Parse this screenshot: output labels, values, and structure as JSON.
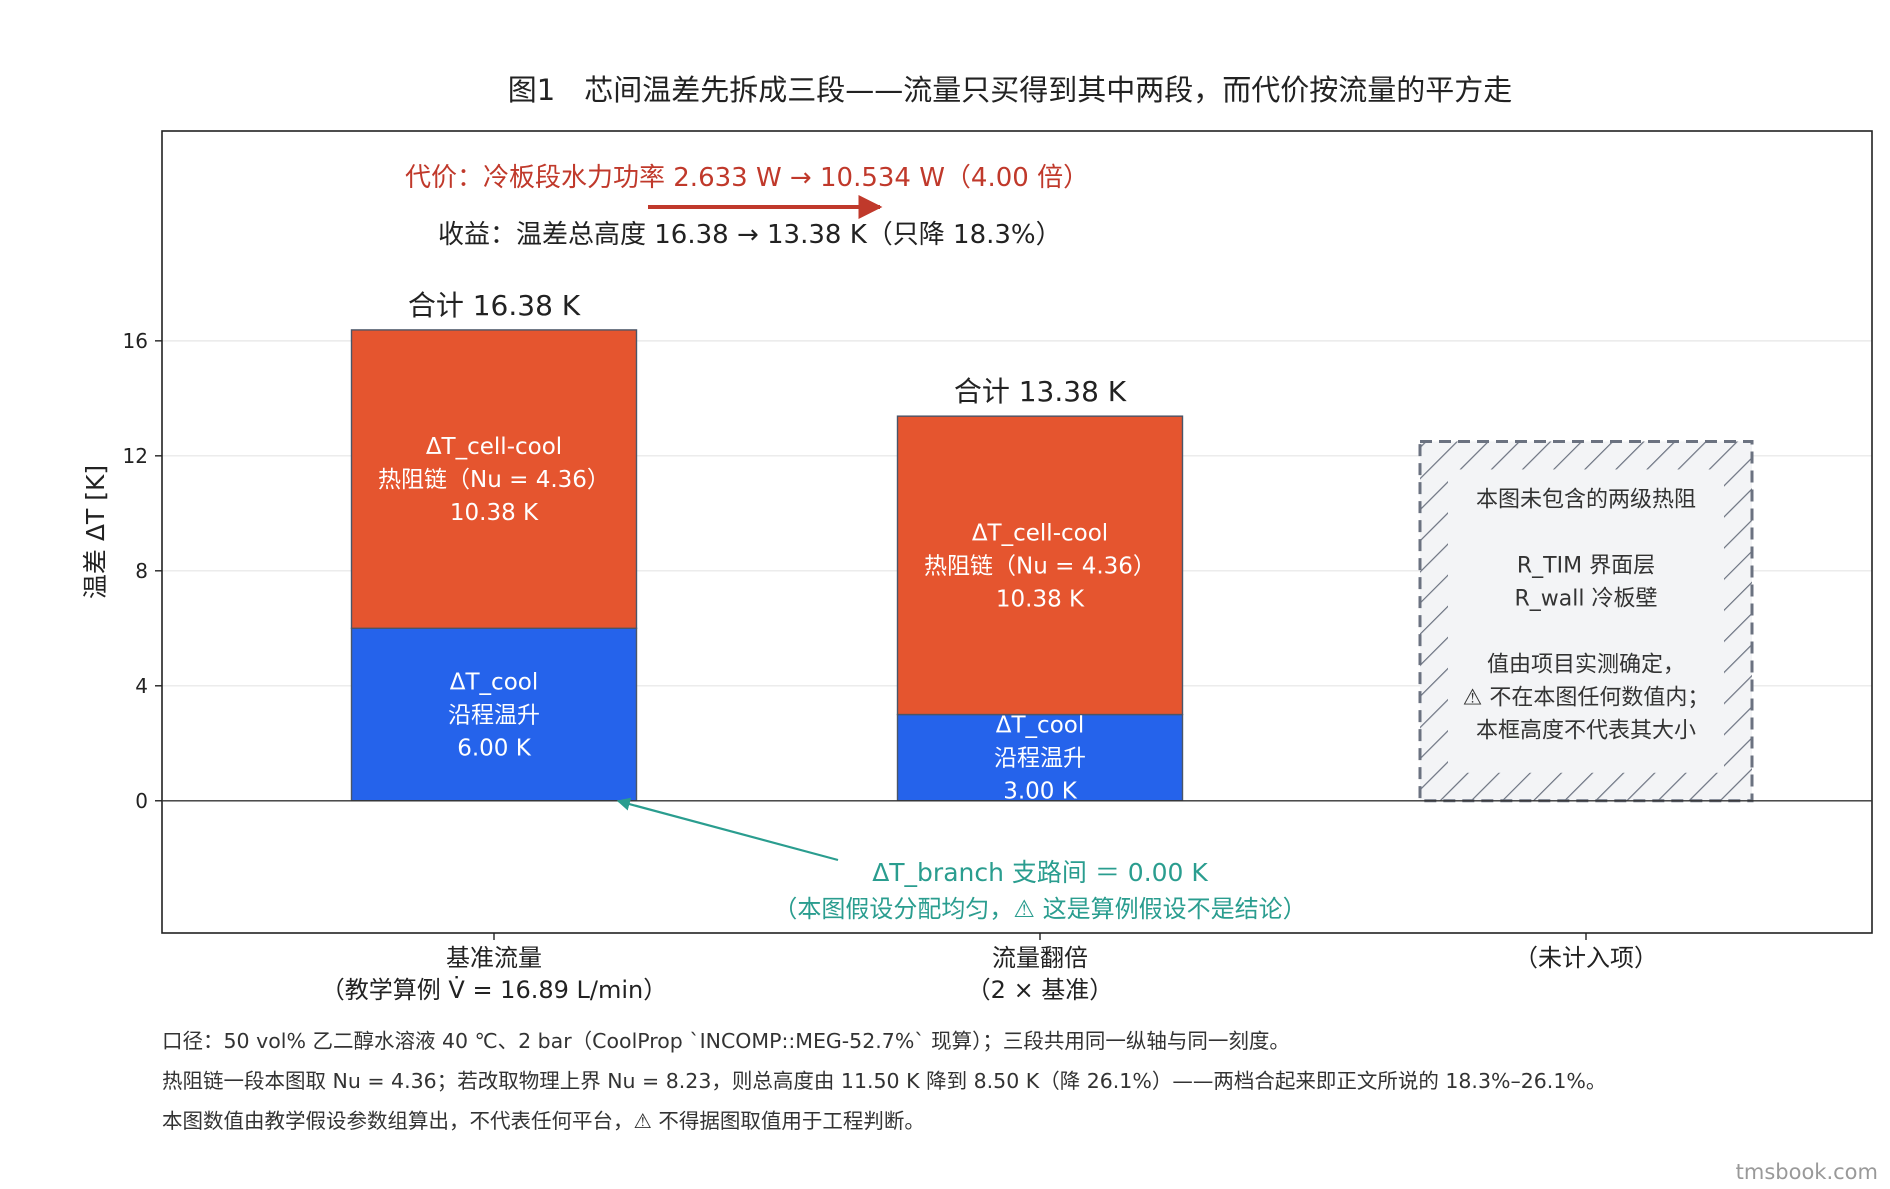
{
  "title": "图1　芯间温差先拆成三段——流量只买得到其中两段，而代价按流量的平方走",
  "annotations": {
    "cost": "代价：冷板段水力功率 2.633 W → 10.534 W（4.00 倍）",
    "gain": "收益：温差总高度 16.38 → 13.38 K（只降 18.3%）",
    "branch_line1": "ΔT_branch 支路间 ＝ 0.00 K",
    "branch_line2": "（本图假设分配均匀，⚠ 这是算例假设不是结论）"
  },
  "colors": {
    "cell_cool": "#e5552f",
    "cool": "#2563eb",
    "excluded_stroke": "#6b7280",
    "excluded_fill": "#f3f4f6",
    "cost_text": "#c0392b",
    "branch_text": "#2a9d8f",
    "grid": "#e5e5e5"
  },
  "chart_data": {
    "type": "bar",
    "stacked": true,
    "ylabel": "温差 ΔT [K]",
    "ylim": [
      -4.6,
      23.3
    ],
    "yticks": [
      0,
      4,
      8,
      12,
      16
    ],
    "grid": true,
    "categories": [
      {
        "lines": [
          "基准流量",
          "（教学算例 V̇ = 16.89 L/min）"
        ]
      },
      {
        "lines": [
          "流量翻倍",
          "（2 × 基准）"
        ]
      },
      {
        "lines": [
          "（未计入项）"
        ]
      }
    ],
    "series": [
      {
        "key": "cool",
        "label_lines": [
          "ΔT_cool",
          "沿程温升"
        ],
        "values": [
          6.0,
          3.0,
          null
        ],
        "value_labels": [
          "6.00 K",
          "3.00 K",
          ""
        ]
      },
      {
        "key": "cell_cool",
        "label_lines": [
          "ΔT_cell-cool",
          "热阻链（Nu = 4.36）"
        ],
        "values": [
          10.38,
          10.38,
          null
        ],
        "value_labels": [
          "10.38 K",
          "10.38 K",
          ""
        ]
      }
    ],
    "totals": [
      "合计 16.38 K",
      "合计 13.38 K",
      ""
    ],
    "excluded_box": {
      "height": 12.5,
      "lines": [
        "本图未包含的两级热阻",
        "",
        "R_TIM  界面层",
        "R_wall 冷板壁",
        "",
        "值由项目实测确定，",
        "⚠ 不在本图任何数值内；",
        "本框高度不代表其大小"
      ]
    }
  },
  "footnotes": [
    "口径：50 vol% 乙二醇水溶液 40 ℃、2 bar（CoolProp `INCOMP::MEG-52.7%` 现算）；三段共用同一纵轴与同一刻度。",
    "热阻链一段本图取 Nu = 4.36；若改取物理上界 Nu = 8.23，则总高度由 11.50 K 降到 8.50 K（降 26.1%）——两档合起来即正文所说的 18.3%–26.1%。",
    "本图数值由教学假设参数组算出，不代表任何平台，⚠ 不得据图取值用于工程判断。"
  ],
  "watermark": "tmsbook.com"
}
